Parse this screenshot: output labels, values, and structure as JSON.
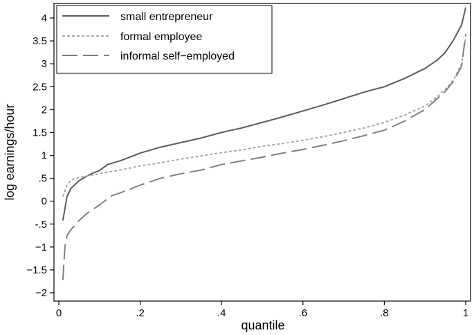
{
  "chart_data": {
    "type": "line",
    "xlabel": "quantile",
    "ylabel": "log earnings/hour",
    "xlim": [
      0,
      1
    ],
    "ylim": [
      -2,
      4
    ],
    "x_ticks": [
      {
        "value": 0,
        "label": "0"
      },
      {
        "value": 0.2,
        "label": ".2"
      },
      {
        "value": 0.4,
        "label": ".4"
      },
      {
        "value": 0.6,
        "label": ".6"
      },
      {
        "value": 0.8,
        "label": ".8"
      },
      {
        "value": 1,
        "label": "1"
      }
    ],
    "y_ticks": [
      {
        "value": 4,
        "label": "4"
      },
      {
        "value": 3.5,
        "label": "3.5"
      },
      {
        "value": 3,
        "label": "3"
      },
      {
        "value": 2.5,
        "label": "2.5"
      },
      {
        "value": 2,
        "label": "2"
      },
      {
        "value": 1.5,
        "label": "1.5"
      },
      {
        "value": 1,
        "label": "1"
      },
      {
        "value": 0.5,
        "label": ".5"
      },
      {
        "value": 0,
        "label": "0"
      },
      {
        "value": -0.5,
        "label": "-.5"
      },
      {
        "value": -1,
        "label": "−1"
      },
      {
        "value": -1.5,
        "label": "−1.5"
      },
      {
        "value": -2,
        "label": "−2"
      }
    ],
    "grid": false,
    "legend_position": "top-left",
    "series": [
      {
        "name": "small entrepreneur",
        "color": "#5a5a5a",
        "dash": "solid",
        "points": [
          [
            0.01,
            -0.42
          ],
          [
            0.02,
            0.1
          ],
          [
            0.03,
            0.28
          ],
          [
            0.05,
            0.45
          ],
          [
            0.08,
            0.6
          ],
          [
            0.1,
            0.67
          ],
          [
            0.12,
            0.8
          ],
          [
            0.15,
            0.88
          ],
          [
            0.18,
            0.98
          ],
          [
            0.2,
            1.05
          ],
          [
            0.25,
            1.18
          ],
          [
            0.3,
            1.28
          ],
          [
            0.35,
            1.38
          ],
          [
            0.4,
            1.5
          ],
          [
            0.45,
            1.6
          ],
          [
            0.5,
            1.72
          ],
          [
            0.55,
            1.84
          ],
          [
            0.6,
            1.97
          ],
          [
            0.65,
            2.1
          ],
          [
            0.7,
            2.24
          ],
          [
            0.75,
            2.38
          ],
          [
            0.8,
            2.5
          ],
          [
            0.85,
            2.68
          ],
          [
            0.9,
            2.9
          ],
          [
            0.93,
            3.08
          ],
          [
            0.95,
            3.25
          ],
          [
            0.97,
            3.52
          ],
          [
            0.99,
            3.85
          ],
          [
            1.0,
            4.23
          ]
        ]
      },
      {
        "name": "formal employee",
        "color": "#a8a8a8",
        "dash": "dotted",
        "points": [
          [
            0.01,
            0.1
          ],
          [
            0.02,
            0.35
          ],
          [
            0.03,
            0.46
          ],
          [
            0.05,
            0.52
          ],
          [
            0.1,
            0.6
          ],
          [
            0.15,
            0.68
          ],
          [
            0.2,
            0.77
          ],
          [
            0.25,
            0.84
          ],
          [
            0.3,
            0.92
          ],
          [
            0.35,
            0.99
          ],
          [
            0.4,
            1.06
          ],
          [
            0.45,
            1.12
          ],
          [
            0.5,
            1.2
          ],
          [
            0.55,
            1.26
          ],
          [
            0.6,
            1.33
          ],
          [
            0.65,
            1.41
          ],
          [
            0.7,
            1.5
          ],
          [
            0.75,
            1.6
          ],
          [
            0.8,
            1.72
          ],
          [
            0.85,
            1.88
          ],
          [
            0.9,
            2.08
          ],
          [
            0.93,
            2.28
          ],
          [
            0.95,
            2.45
          ],
          [
            0.97,
            2.65
          ],
          [
            0.99,
            3.0
          ],
          [
            1.0,
            3.58
          ]
        ]
      },
      {
        "name": "informal self−employed",
        "color": "#7f7f7f",
        "dash": "dashed",
        "points": [
          [
            0.01,
            -1.72
          ],
          [
            0.015,
            -1.0
          ],
          [
            0.02,
            -0.75
          ],
          [
            0.03,
            -0.62
          ],
          [
            0.05,
            -0.42
          ],
          [
            0.07,
            -0.26
          ],
          [
            0.1,
            -0.08
          ],
          [
            0.13,
            0.12
          ],
          [
            0.15,
            0.18
          ],
          [
            0.2,
            0.35
          ],
          [
            0.25,
            0.5
          ],
          [
            0.3,
            0.6
          ],
          [
            0.35,
            0.68
          ],
          [
            0.4,
            0.8
          ],
          [
            0.45,
            0.88
          ],
          [
            0.5,
            0.96
          ],
          [
            0.55,
            1.05
          ],
          [
            0.6,
            1.13
          ],
          [
            0.65,
            1.22
          ],
          [
            0.7,
            1.32
          ],
          [
            0.75,
            1.43
          ],
          [
            0.8,
            1.55
          ],
          [
            0.85,
            1.75
          ],
          [
            0.88,
            1.9
          ],
          [
            0.9,
            2.0
          ],
          [
            0.93,
            2.24
          ],
          [
            0.95,
            2.4
          ],
          [
            0.97,
            2.62
          ],
          [
            0.99,
            2.95
          ],
          [
            1.0,
            3.65
          ]
        ]
      }
    ]
  }
}
